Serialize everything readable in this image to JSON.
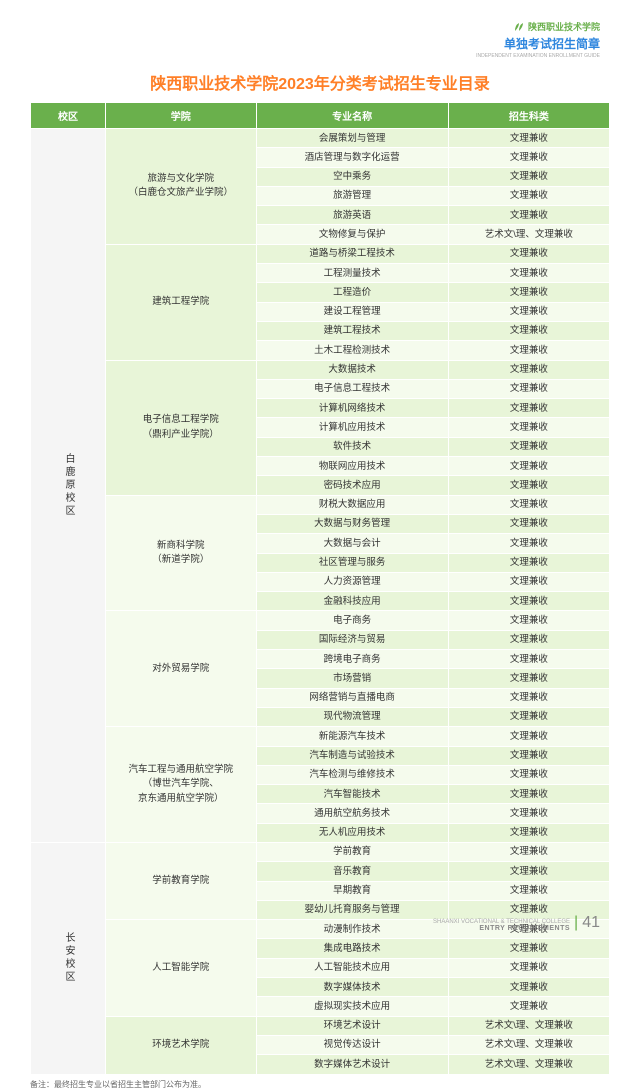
{
  "header": {
    "logo_text": "陕西职业技术学院",
    "subtitle_cn": "单独考试招生简章",
    "subtitle_en": "INDEPENDENT EXAMINATION ENROLLMENT GUIDE"
  },
  "title": "陕西职业技术学院2023年分类考试招生专业目录",
  "columns": [
    "校区",
    "学院",
    "专业名称",
    "招生科类"
  ],
  "col_widths": [
    "6%",
    "28%",
    "36%",
    "30%"
  ],
  "campuses": [
    {
      "name": "白鹿原校区",
      "departments": [
        {
          "name": "旅游与文化学院\n（白鹿仓文旅产业学院）",
          "majors": [
            {
              "n": "会展策划与管理",
              "t": "文理兼收"
            },
            {
              "n": "酒店管理与数字化运营",
              "t": "文理兼收"
            },
            {
              "n": "空中乘务",
              "t": "文理兼收"
            },
            {
              "n": "旅游管理",
              "t": "文理兼收"
            },
            {
              "n": "旅游英语",
              "t": "文理兼收"
            },
            {
              "n": "文物修复与保护",
              "t": "艺术文\\理、文理兼收"
            }
          ]
        },
        {
          "name": "建筑工程学院",
          "majors": [
            {
              "n": "道路与桥梁工程技术",
              "t": "文理兼收"
            },
            {
              "n": "工程测量技术",
              "t": "文理兼收"
            },
            {
              "n": "工程造价",
              "t": "文理兼收"
            },
            {
              "n": "建设工程管理",
              "t": "文理兼收"
            },
            {
              "n": "建筑工程技术",
              "t": "文理兼收"
            },
            {
              "n": "土木工程检测技术",
              "t": "文理兼收"
            }
          ]
        },
        {
          "name": "电子信息工程学院\n（鼎利产业学院）",
          "majors": [
            {
              "n": "大数据技术",
              "t": "文理兼收"
            },
            {
              "n": "电子信息工程技术",
              "t": "文理兼收"
            },
            {
              "n": "计算机网络技术",
              "t": "文理兼收"
            },
            {
              "n": "计算机应用技术",
              "t": "文理兼收"
            },
            {
              "n": "软件技术",
              "t": "文理兼收"
            },
            {
              "n": "物联网应用技术",
              "t": "文理兼收"
            },
            {
              "n": "密码技术应用",
              "t": "文理兼收"
            }
          ]
        },
        {
          "name": "新商科学院\n（新道学院）",
          "majors": [
            {
              "n": "财税大数据应用",
              "t": "文理兼收"
            },
            {
              "n": "大数据与财务管理",
              "t": "文理兼收"
            },
            {
              "n": "大数据与会计",
              "t": "文理兼收"
            },
            {
              "n": "社区管理与服务",
              "t": "文理兼收"
            },
            {
              "n": "人力资源管理",
              "t": "文理兼收"
            },
            {
              "n": "金融科技应用",
              "t": "文理兼收"
            }
          ]
        },
        {
          "name": "对外贸易学院",
          "majors": [
            {
              "n": "电子商务",
              "t": "文理兼收"
            },
            {
              "n": "国际经济与贸易",
              "t": "文理兼收"
            },
            {
              "n": "跨境电子商务",
              "t": "文理兼收"
            },
            {
              "n": "市场营销",
              "t": "文理兼收"
            },
            {
              "n": "网络营销与直播电商",
              "t": "文理兼收"
            },
            {
              "n": "现代物流管理",
              "t": "文理兼收"
            }
          ]
        },
        {
          "name": "汽车工程与通用航空学院\n（博世汽车学院、\n京东通用航空学院）",
          "half": 3,
          "majors": [
            {
              "n": "新能源汽车技术",
              "t": "文理兼收"
            },
            {
              "n": "汽车制造与试验技术",
              "t": "文理兼收"
            },
            {
              "n": "汽车检测与维修技术",
              "t": "文理兼收"
            },
            {
              "n": "汽车智能技术",
              "t": "文理兼收"
            },
            {
              "n": "通用航空航务技术",
              "t": "文理兼收"
            },
            {
              "n": "无人机应用技术",
              "t": "文理兼收"
            }
          ]
        }
      ]
    },
    {
      "name": "长安校区",
      "departments": [
        {
          "name": "学前教育学院",
          "majors": [
            {
              "n": "学前教育",
              "t": "文理兼收"
            },
            {
              "n": "音乐教育",
              "t": "文理兼收"
            },
            {
              "n": "早期教育",
              "t": "文理兼收"
            },
            {
              "n": "婴幼儿托育服务与管理",
              "t": "文理兼收"
            }
          ]
        },
        {
          "name": "人工智能学院",
          "majors": [
            {
              "n": "动漫制作技术",
              "t": "文理兼收"
            },
            {
              "n": "集成电路技术",
              "t": "文理兼收"
            },
            {
              "n": "人工智能技术应用",
              "t": "文理兼收"
            },
            {
              "n": "数字媒体技术",
              "t": "文理兼收"
            },
            {
              "n": "虚拟现实技术应用",
              "t": "文理兼收"
            }
          ]
        },
        {
          "name": "环境艺术学院",
          "majors": [
            {
              "n": "环境艺术设计",
              "t": "艺术文\\理、文理兼收"
            },
            {
              "n": "视觉传达设计",
              "t": "艺术文\\理、文理兼收"
            },
            {
              "n": "数字媒体艺术设计",
              "t": "艺术文\\理、文理兼收"
            }
          ]
        }
      ]
    }
  ],
  "footnote": "备注：最终招生专业以省招生主管部门公布为准。",
  "footer": {
    "en1": "SHAANXI VOCATIONAL & TECHNICAL COLLEGE",
    "en2": "ENTRY REQUIREMENTS",
    "page": "41"
  }
}
